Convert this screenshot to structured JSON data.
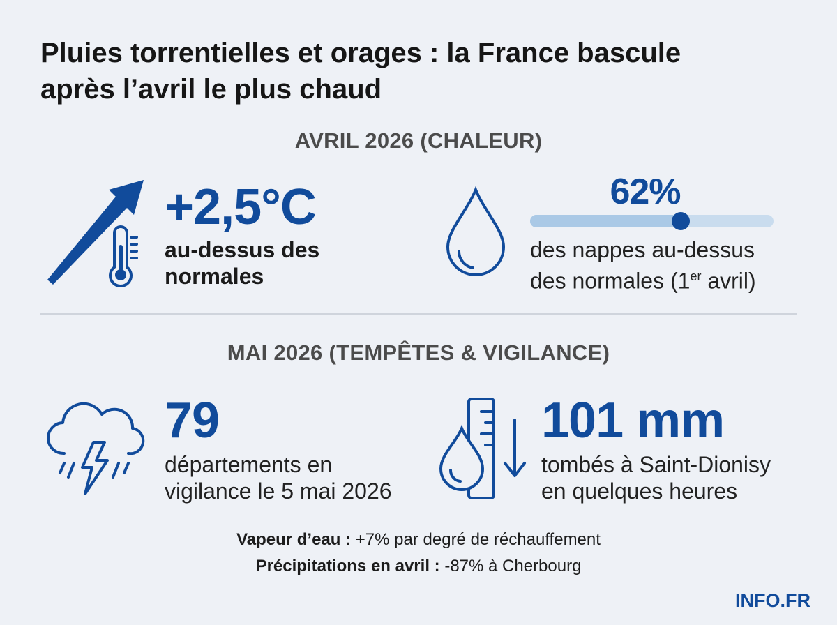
{
  "title": "Pluies torrentielles et orages : la France bascule après l’avril le plus chaud",
  "april": {
    "heading": "AVRIL 2026 (CHALEUR)",
    "temp": {
      "value": "+2,5°C",
      "line1": "au-dessus des",
      "line2": "normales",
      "icon": "trend-up-thermometer-icon"
    },
    "aquifers": {
      "value": "62%",
      "progress": 0.62,
      "line1": "des nappes au-dessus",
      "line2_pre": "des normales (1",
      "line2_sup": "er",
      "line2_post": " avril)",
      "icon": "water-drop-icon"
    }
  },
  "may": {
    "heading": "MAI 2026 (TEMPÊTES & VIGILANCE)",
    "departments": {
      "value": "79",
      "line1": "départements en",
      "line2": "vigilance le 5 mai 2026",
      "icon": "storm-cloud-icon"
    },
    "rainfall": {
      "value": "101 mm",
      "line1": "tombés à Saint-Dionisy",
      "line2": "en quelques heures",
      "icon": "rain-gauge-icon"
    }
  },
  "notes": [
    {
      "label": "Vapeur d’eau :",
      "text": " +7% par degré de réchauffement"
    },
    {
      "label": "Précipitations en avril :",
      "text": " -87% à Cherbourg"
    }
  ],
  "brand": "INFO.FR",
  "colors": {
    "accent": "#114b9b",
    "track": "#c9dcee",
    "background": "#eef1f6"
  }
}
